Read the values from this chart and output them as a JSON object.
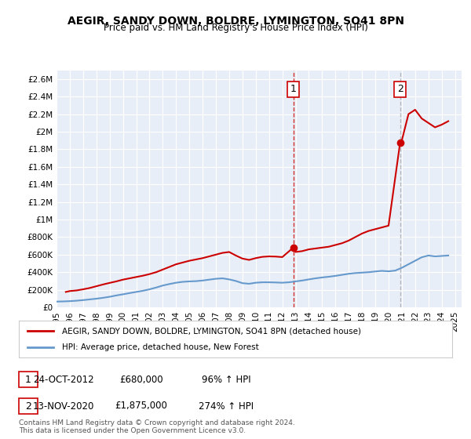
{
  "title": "AEGIR, SANDY DOWN, BOLDRE, LYMINGTON, SO41 8PN",
  "subtitle": "Price paid vs. HM Land Registry's House Price Index (HPI)",
  "legend_entry1": "AEGIR, SANDY DOWN, BOLDRE, LYMINGTON, SO41 8PN (detached house)",
  "legend_entry2": "HPI: Average price, detached house, New Forest",
  "annotation1_label": "1",
  "annotation1_date": "24-OCT-2012",
  "annotation1_price": "£680,000",
  "annotation1_hpi": "96% ↑ HPI",
  "annotation2_label": "2",
  "annotation2_date": "13-NOV-2020",
  "annotation2_price": "£1,875,000",
  "annotation2_hpi": "274% ↑ HPI",
  "footer1": "Contains HM Land Registry data © Crown copyright and database right 2024.",
  "footer2": "This data is licensed under the Open Government Licence v3.0.",
  "red_color": "#cc0000",
  "blue_color": "#6699cc",
  "background_color": "#e8eef7",
  "plot_bg_color": "#ffffff",
  "ylim": [
    0,
    2700000
  ],
  "xlim_start": 1995.0,
  "xlim_end": 2025.5,
  "hpi_line": {
    "years": [
      1995,
      1995.5,
      1996,
      1996.5,
      1997,
      1997.5,
      1998,
      1998.5,
      1999,
      1999.5,
      2000,
      2000.5,
      2001,
      2001.5,
      2002,
      2002.5,
      2003,
      2003.5,
      2004,
      2004.5,
      2005,
      2005.5,
      2006,
      2006.5,
      2007,
      2007.5,
      2008,
      2008.5,
      2009,
      2009.5,
      2010,
      2010.5,
      2011,
      2011.5,
      2012,
      2012.5,
      2013,
      2013.5,
      2014,
      2014.5,
      2015,
      2015.5,
      2016,
      2016.5,
      2017,
      2017.5,
      2018,
      2018.5,
      2019,
      2019.5,
      2020,
      2020.5,
      2021,
      2021.5,
      2022,
      2022.5,
      2023,
      2023.5,
      2024,
      2024.5
    ],
    "values": [
      65000,
      67000,
      70000,
      75000,
      82000,
      90000,
      98000,
      108000,
      120000,
      135000,
      148000,
      162000,
      175000,
      188000,
      205000,
      225000,
      248000,
      265000,
      280000,
      290000,
      295000,
      298000,
      305000,
      315000,
      325000,
      330000,
      318000,
      300000,
      275000,
      268000,
      280000,
      285000,
      285000,
      283000,
      280000,
      285000,
      295000,
      305000,
      318000,
      330000,
      340000,
      348000,
      358000,
      370000,
      382000,
      390000,
      395000,
      400000,
      408000,
      415000,
      410000,
      418000,
      450000,
      490000,
      530000,
      570000,
      590000,
      580000,
      585000,
      590000
    ]
  },
  "property_line": {
    "years": [
      1995.7,
      1996.0,
      1996.5,
      1997.0,
      1997.5,
      1998.0,
      1998.5,
      1999.0,
      1999.5,
      2000.0,
      2000.5,
      2001.0,
      2001.5,
      2002.0,
      2002.5,
      2003.0,
      2003.5,
      2004.0,
      2004.5,
      2005.0,
      2005.5,
      2006.0,
      2006.5,
      2007.0,
      2007.5,
      2008.0,
      2008.5,
      2009.0,
      2009.5,
      2010.0,
      2010.5,
      2011.0,
      2011.5,
      2012.0,
      2012.83,
      2013.0,
      2013.5,
      2014.0,
      2014.5,
      2015.0,
      2015.5,
      2016.0,
      2016.5,
      2017.0,
      2017.5,
      2018.0,
      2018.5,
      2019.0,
      2019.5,
      2020.0,
      2020.87,
      2021.0,
      2021.5,
      2022.0,
      2022.5,
      2023.0,
      2023.5,
      2024.0,
      2024.5
    ],
    "values": [
      175000,
      185000,
      192000,
      205000,
      220000,
      240000,
      260000,
      278000,
      295000,
      315000,
      330000,
      345000,
      360000,
      378000,
      400000,
      430000,
      460000,
      490000,
      510000,
      530000,
      545000,
      560000,
      580000,
      600000,
      620000,
      630000,
      590000,
      555000,
      540000,
      560000,
      575000,
      580000,
      578000,
      572000,
      680000,
      630000,
      640000,
      660000,
      670000,
      680000,
      690000,
      710000,
      730000,
      760000,
      800000,
      840000,
      870000,
      890000,
      910000,
      930000,
      1875000,
      1900000,
      2200000,
      2250000,
      2150000,
      2100000,
      2050000,
      2080000,
      2120000
    ]
  },
  "marker1_x": 2012.83,
  "marker1_y": 680000,
  "marker2_x": 2020.87,
  "marker2_y": 1875000,
  "vline1_x": 2012.83,
  "vline2_x": 2020.87,
  "yticks": [
    0,
    200000,
    400000,
    600000,
    800000,
    1000000,
    1200000,
    1400000,
    1600000,
    1800000,
    2000000,
    2200000,
    2400000,
    2600000
  ],
  "ytick_labels": [
    "£0",
    "£200K",
    "£400K",
    "£600K",
    "£800K",
    "£1M",
    "£1.2M",
    "£1.4M",
    "£1.6M",
    "£1.8M",
    "£2M",
    "£2.2M",
    "£2.4M",
    "£2.6M"
  ],
  "xticks": [
    1995,
    1996,
    1997,
    1998,
    1999,
    2000,
    2001,
    2002,
    2003,
    2004,
    2005,
    2006,
    2007,
    2008,
    2009,
    2010,
    2011,
    2012,
    2013,
    2014,
    2015,
    2016,
    2017,
    2018,
    2019,
    2020,
    2021,
    2022,
    2023,
    2024,
    2025
  ]
}
